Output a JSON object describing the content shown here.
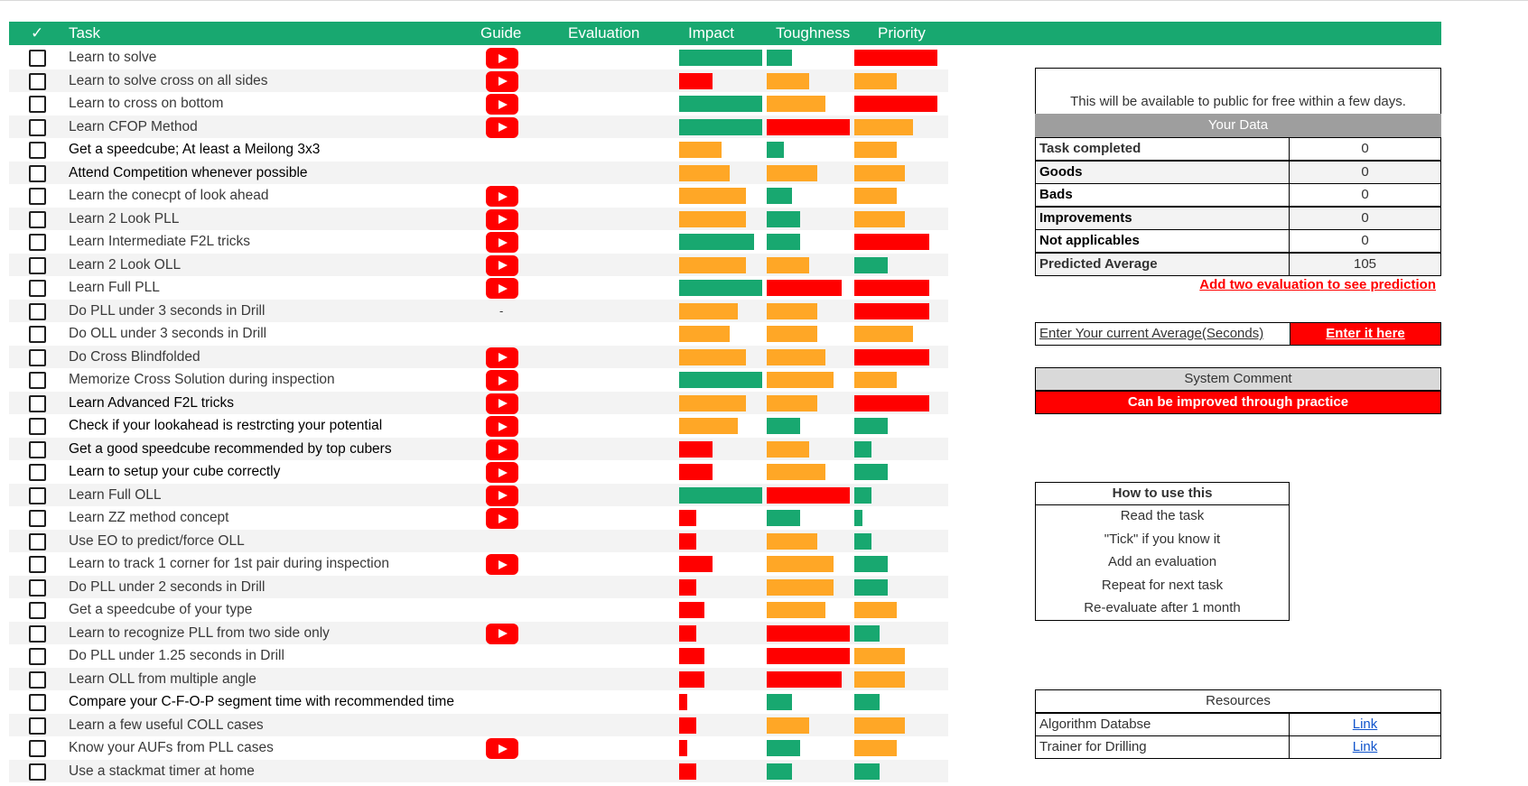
{
  "colors": {
    "header_green": "#18a870",
    "high": "#18a870",
    "medium": "#ffa726",
    "low": "#ff0000"
  },
  "header": {
    "check": "✓",
    "task": "Task",
    "guide": "Guide",
    "evaluation": "Evaluation",
    "impact": "Impact",
    "toughness": "Toughness",
    "priority": "Priority"
  },
  "tasks": [
    {
      "label": "Learn to solve",
      "guide": "youtube-icon",
      "impact": 0.92,
      "impact_color": "green",
      "toughness": 0.28,
      "toughness_color": "green",
      "priority": 0.92,
      "priority_color": "red"
    },
    {
      "label": "Learn to solve cross on all sides",
      "guide": "youtube-icon",
      "impact": 0.37,
      "impact_color": "red",
      "toughness": 0.47,
      "toughness_color": "orange",
      "priority": 0.47,
      "priority_color": "orange"
    },
    {
      "label": "Learn to cross on bottom",
      "guide": "youtube-icon",
      "impact": 0.92,
      "impact_color": "green",
      "toughness": 0.65,
      "toughness_color": "orange",
      "priority": 0.92,
      "priority_color": "red"
    },
    {
      "label": "Learn CFOP Method",
      "guide": "youtube-icon",
      "impact": 0.92,
      "impact_color": "green",
      "toughness": 0.92,
      "toughness_color": "red",
      "priority": 0.65,
      "priority_color": "orange"
    },
    {
      "label": "Get a speedcube; At least a Meilong 3x3",
      "guide": "",
      "impact": 0.47,
      "impact_color": "orange",
      "toughness": 0.19,
      "toughness_color": "green",
      "priority": 0.47,
      "priority_color": "orange"
    },
    {
      "label": "Attend Competition whenever possible",
      "guide": "",
      "impact": 0.56,
      "impact_color": "orange",
      "toughness": 0.56,
      "toughness_color": "orange",
      "priority": 0.56,
      "priority_color": "orange"
    },
    {
      "label": "Learn the conecpt of look ahead",
      "guide": "youtube-icon",
      "impact": 0.74,
      "impact_color": "orange",
      "toughness": 0.28,
      "toughness_color": "green",
      "priority": 0.47,
      "priority_color": "orange"
    },
    {
      "label": "Learn 2 Look PLL",
      "guide": "youtube-icon",
      "impact": 0.74,
      "impact_color": "orange",
      "toughness": 0.37,
      "toughness_color": "green",
      "priority": 0.56,
      "priority_color": "orange"
    },
    {
      "label": "Learn Intermediate F2L tricks",
      "guide": "youtube-icon",
      "impact": 0.83,
      "impact_color": "green",
      "toughness": 0.37,
      "toughness_color": "green",
      "priority": 0.83,
      "priority_color": "red"
    },
    {
      "label": "Learn 2 Look OLL",
      "guide": "youtube-icon",
      "impact": 0.74,
      "impact_color": "orange",
      "toughness": 0.47,
      "toughness_color": "orange",
      "priority": 0.37,
      "priority_color": "green"
    },
    {
      "label": "Learn Full PLL",
      "guide": "youtube-icon",
      "impact": 0.92,
      "impact_color": "green",
      "toughness": 0.83,
      "toughness_color": "red",
      "priority": 0.83,
      "priority_color": "red"
    },
    {
      "label": "Do PLL under 3 seconds in Drill",
      "guide": "-",
      "impact": 0.65,
      "impact_color": "orange",
      "toughness": 0.56,
      "toughness_color": "orange",
      "priority": 0.83,
      "priority_color": "red"
    },
    {
      "label": "Do OLL under 3 seconds in Drill",
      "guide": "",
      "impact": 0.56,
      "impact_color": "orange",
      "toughness": 0.56,
      "toughness_color": "orange",
      "priority": 0.65,
      "priority_color": "orange"
    },
    {
      "label": "Do Cross Blindfolded",
      "guide": "youtube-icon",
      "impact": 0.74,
      "impact_color": "orange",
      "toughness": 0.65,
      "toughness_color": "orange",
      "priority": 0.83,
      "priority_color": "red"
    },
    {
      "label": "Memorize Cross Solution during inspection",
      "guide": "youtube-icon",
      "impact": 0.92,
      "impact_color": "green",
      "toughness": 0.74,
      "toughness_color": "orange",
      "priority": 0.47,
      "priority_color": "orange"
    },
    {
      "label": "Learn Advanced F2L tricks",
      "guide": "youtube-icon",
      "impact": 0.74,
      "impact_color": "orange",
      "toughness": 0.56,
      "toughness_color": "orange",
      "priority": 0.83,
      "priority_color": "red"
    },
    {
      "label": "Check if your lookahead is restrcting your potential",
      "guide": "youtube-icon",
      "impact": 0.65,
      "impact_color": "orange",
      "toughness": 0.37,
      "toughness_color": "green",
      "priority": 0.37,
      "priority_color": "green"
    },
    {
      "label": "Get a good speedcube recommended by top cubers",
      "guide": "youtube-icon",
      "impact": 0.37,
      "impact_color": "red",
      "toughness": 0.47,
      "toughness_color": "orange",
      "priority": 0.19,
      "priority_color": "green"
    },
    {
      "label": "Learn to setup your cube correctly",
      "guide": "youtube-icon",
      "impact": 0.37,
      "impact_color": "red",
      "toughness": 0.65,
      "toughness_color": "orange",
      "priority": 0.37,
      "priority_color": "green"
    },
    {
      "label": "Learn Full OLL",
      "guide": "youtube-icon",
      "impact": 0.92,
      "impact_color": "green",
      "toughness": 0.92,
      "toughness_color": "red",
      "priority": 0.19,
      "priority_color": "green"
    },
    {
      "label": "Learn ZZ method concept",
      "guide": "youtube-icon",
      "impact": 0.19,
      "impact_color": "red",
      "toughness": 0.37,
      "toughness_color": "green",
      "priority": 0.09,
      "priority_color": "green"
    },
    {
      "label": "Use EO to predict/force OLL",
      "guide": "",
      "impact": 0.19,
      "impact_color": "red",
      "toughness": 0.56,
      "toughness_color": "orange",
      "priority": 0.19,
      "priority_color": "green"
    },
    {
      "label": "Learn to track 1 corner for 1st pair during inspection",
      "guide": "youtube-icon",
      "impact": 0.37,
      "impact_color": "red",
      "toughness": 0.74,
      "toughness_color": "orange",
      "priority": 0.37,
      "priority_color": "green"
    },
    {
      "label": "Do PLL under 2 seconds in Drill",
      "guide": "",
      "impact": 0.19,
      "impact_color": "red",
      "toughness": 0.74,
      "toughness_color": "orange",
      "priority": 0.37,
      "priority_color": "green"
    },
    {
      "label": "Get a speedcube of your type",
      "guide": "",
      "impact": 0.28,
      "impact_color": "red",
      "toughness": 0.65,
      "toughness_color": "orange",
      "priority": 0.47,
      "priority_color": "orange"
    },
    {
      "label": "Learn to recognize PLL from two side only",
      "guide": "youtube-icon",
      "impact": 0.19,
      "impact_color": "red",
      "toughness": 0.92,
      "toughness_color": "red",
      "priority": 0.28,
      "priority_color": "green"
    },
    {
      "label": "Do PLL under 1.25 seconds in Drill",
      "guide": "",
      "impact": 0.28,
      "impact_color": "red",
      "toughness": 0.92,
      "toughness_color": "red",
      "priority": 0.56,
      "priority_color": "orange"
    },
    {
      "label": "Learn OLL from multiple angle",
      "guide": "",
      "impact": 0.28,
      "impact_color": "red",
      "toughness": 0.83,
      "toughness_color": "red",
      "priority": 0.56,
      "priority_color": "orange"
    },
    {
      "label": "Compare your C-F-O-P segment time with recommended time",
      "guide": "",
      "impact": 0.09,
      "impact_color": "red",
      "toughness": 0.28,
      "toughness_color": "green",
      "priority": 0.28,
      "priority_color": "green"
    },
    {
      "label": "Learn a few useful COLL cases",
      "guide": "",
      "impact": 0.19,
      "impact_color": "red",
      "toughness": 0.47,
      "toughness_color": "orange",
      "priority": 0.56,
      "priority_color": "orange"
    },
    {
      "label": "Know your AUFs from PLL cases",
      "guide": "youtube-icon",
      "impact": 0.09,
      "impact_color": "red",
      "toughness": 0.37,
      "toughness_color": "green",
      "priority": 0.47,
      "priority_color": "orange"
    },
    {
      "label": "Use a stackmat timer at home",
      "guide": "",
      "impact": 0.19,
      "impact_color": "red",
      "toughness": 0.28,
      "toughness_color": "green",
      "priority": 0.28,
      "priority_color": "green"
    }
  ],
  "notice": "This will be available to public for free within a few days.",
  "your_data": {
    "title": "Your Data",
    "rows": [
      {
        "label": "Task completed",
        "value": "0"
      },
      {
        "label": "Goods",
        "value": "0"
      },
      {
        "label": "Bads",
        "value": "0"
      },
      {
        "label": "Improvements",
        "value": "0"
      },
      {
        "label": "Not applicables",
        "value": "0"
      },
      {
        "label": "Predicted Average",
        "value": "105"
      }
    ],
    "prediction_hint": "Add two evaluation to see prediction"
  },
  "average_entry": {
    "label": "Enter Your current Average(Seconds)",
    "button": "Enter it here"
  },
  "system_comment": {
    "title": "System Comment",
    "text": "Can be improved through practice"
  },
  "how_to": {
    "title": "How to use this",
    "steps": [
      "Read the task",
      "\"Tick\" if you know it",
      "Add an evaluation",
      "Repeat for next task",
      "Re-evaluate after 1 month"
    ]
  },
  "resources": {
    "title": "Resources",
    "items": [
      {
        "label": "Algorithm Databse",
        "link": "Link"
      },
      {
        "label": "Trainer for Drilling",
        "link": "Link"
      }
    ]
  }
}
